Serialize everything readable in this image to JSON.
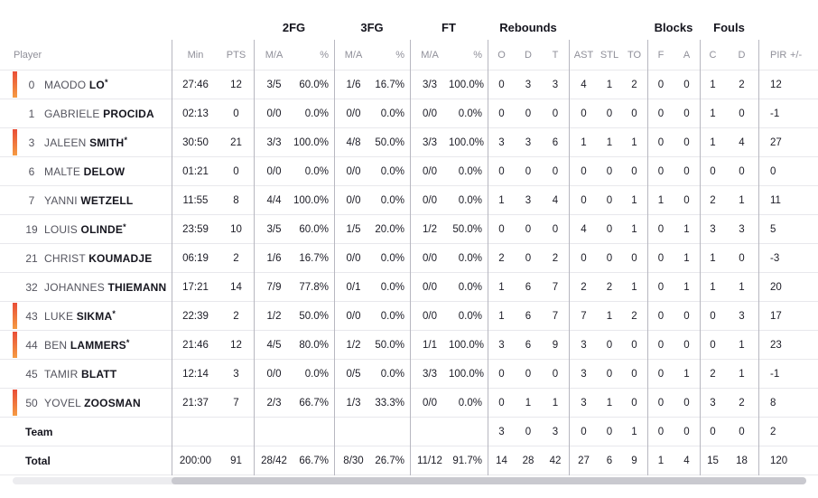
{
  "table": {
    "starter_mark": "*",
    "accent_gradient_top": "#e94e37",
    "accent_gradient_bottom": "#f59b43",
    "group_headers": [
      {
        "label": "2FG"
      },
      {
        "label": "3FG"
      },
      {
        "label": "FT"
      },
      {
        "label": "Rebounds"
      },
      {
        "label": "Blocks"
      },
      {
        "label": "Fouls"
      }
    ],
    "columns": {
      "player": "Player",
      "min": "Min",
      "pts": "PTS",
      "fg2_ma": "M/A",
      "fg2_pct": "%",
      "fg3_ma": "M/A",
      "fg3_pct": "%",
      "ft_ma": "M/A",
      "ft_pct": "%",
      "reb_o": "O",
      "reb_d": "D",
      "reb_t": "T",
      "ast": "AST",
      "stl": "STL",
      "to": "TO",
      "blk_f": "F",
      "blk_a": "A",
      "foul_c": "C",
      "foul_d": "D",
      "pir": "PIR",
      "plus_minus": "+/-"
    },
    "players": [
      {
        "number": "0",
        "first": "MAODO",
        "last": "LO",
        "starter": true,
        "on_court": true,
        "min": "27:46",
        "pts": "12",
        "fg2_ma": "3/5",
        "fg2_pct": "60.0%",
        "fg3_ma": "1/6",
        "fg3_pct": "16.7%",
        "ft_ma": "3/3",
        "ft_pct": "100.0%",
        "reb_o": "0",
        "reb_d": "3",
        "reb_t": "3",
        "ast": "4",
        "stl": "1",
        "to": "2",
        "blk_f": "0",
        "blk_a": "0",
        "foul_c": "1",
        "foul_d": "2",
        "pir": "12",
        "plus_minus": ""
      },
      {
        "number": "1",
        "first": "GABRIELE",
        "last": "PROCIDA",
        "starter": false,
        "on_court": false,
        "min": "02:13",
        "pts": "0",
        "fg2_ma": "0/0",
        "fg2_pct": "0.0%",
        "fg3_ma": "0/0",
        "fg3_pct": "0.0%",
        "ft_ma": "0/0",
        "ft_pct": "0.0%",
        "reb_o": "0",
        "reb_d": "0",
        "reb_t": "0",
        "ast": "0",
        "stl": "0",
        "to": "0",
        "blk_f": "0",
        "blk_a": "0",
        "foul_c": "1",
        "foul_d": "0",
        "pir": "-1",
        "plus_minus": ""
      },
      {
        "number": "3",
        "first": "JALEEN",
        "last": "SMITH",
        "starter": true,
        "on_court": true,
        "min": "30:50",
        "pts": "21",
        "fg2_ma": "3/3",
        "fg2_pct": "100.0%",
        "fg3_ma": "4/8",
        "fg3_pct": "50.0%",
        "ft_ma": "3/3",
        "ft_pct": "100.0%",
        "reb_o": "3",
        "reb_d": "3",
        "reb_t": "6",
        "ast": "1",
        "stl": "1",
        "to": "1",
        "blk_f": "0",
        "blk_a": "0",
        "foul_c": "1",
        "foul_d": "4",
        "pir": "27",
        "plus_minus": ""
      },
      {
        "number": "6",
        "first": "MALTE",
        "last": "DELOW",
        "starter": false,
        "on_court": false,
        "min": "01:21",
        "pts": "0",
        "fg2_ma": "0/0",
        "fg2_pct": "0.0%",
        "fg3_ma": "0/0",
        "fg3_pct": "0.0%",
        "ft_ma": "0/0",
        "ft_pct": "0.0%",
        "reb_o": "0",
        "reb_d": "0",
        "reb_t": "0",
        "ast": "0",
        "stl": "0",
        "to": "0",
        "blk_f": "0",
        "blk_a": "0",
        "foul_c": "0",
        "foul_d": "0",
        "pir": "0",
        "plus_minus": ""
      },
      {
        "number": "7",
        "first": "YANNI",
        "last": "WETZELL",
        "starter": false,
        "on_court": false,
        "min": "11:55",
        "pts": "8",
        "fg2_ma": "4/4",
        "fg2_pct": "100.0%",
        "fg3_ma": "0/0",
        "fg3_pct": "0.0%",
        "ft_ma": "0/0",
        "ft_pct": "0.0%",
        "reb_o": "1",
        "reb_d": "3",
        "reb_t": "4",
        "ast": "0",
        "stl": "0",
        "to": "1",
        "blk_f": "1",
        "blk_a": "0",
        "foul_c": "2",
        "foul_d": "1",
        "pir": "11",
        "plus_minus": ""
      },
      {
        "number": "19",
        "first": "LOUIS",
        "last": "OLINDE",
        "starter": true,
        "on_court": false,
        "min": "23:59",
        "pts": "10",
        "fg2_ma": "3/5",
        "fg2_pct": "60.0%",
        "fg3_ma": "1/5",
        "fg3_pct": "20.0%",
        "ft_ma": "1/2",
        "ft_pct": "50.0%",
        "reb_o": "0",
        "reb_d": "0",
        "reb_t": "0",
        "ast": "4",
        "stl": "0",
        "to": "1",
        "blk_f": "0",
        "blk_a": "1",
        "foul_c": "3",
        "foul_d": "3",
        "pir": "5",
        "plus_minus": ""
      },
      {
        "number": "21",
        "first": "CHRIST",
        "last": "KOUMADJE",
        "starter": false,
        "on_court": false,
        "min": "06:19",
        "pts": "2",
        "fg2_ma": "1/6",
        "fg2_pct": "16.7%",
        "fg3_ma": "0/0",
        "fg3_pct": "0.0%",
        "ft_ma": "0/0",
        "ft_pct": "0.0%",
        "reb_o": "2",
        "reb_d": "0",
        "reb_t": "2",
        "ast": "0",
        "stl": "0",
        "to": "0",
        "blk_f": "0",
        "blk_a": "1",
        "foul_c": "1",
        "foul_d": "0",
        "pir": "-3",
        "plus_minus": ""
      },
      {
        "number": "32",
        "first": "JOHANNES",
        "last": "THIEMANN",
        "starter": false,
        "on_court": false,
        "min": "17:21",
        "pts": "14",
        "fg2_ma": "7/9",
        "fg2_pct": "77.8%",
        "fg3_ma": "0/1",
        "fg3_pct": "0.0%",
        "ft_ma": "0/0",
        "ft_pct": "0.0%",
        "reb_o": "1",
        "reb_d": "6",
        "reb_t": "7",
        "ast": "2",
        "stl": "2",
        "to": "1",
        "blk_f": "0",
        "blk_a": "1",
        "foul_c": "1",
        "foul_d": "1",
        "pir": "20",
        "plus_minus": ""
      },
      {
        "number": "43",
        "first": "LUKE",
        "last": "SIKMA",
        "starter": true,
        "on_court": true,
        "min": "22:39",
        "pts": "2",
        "fg2_ma": "1/2",
        "fg2_pct": "50.0%",
        "fg3_ma": "0/0",
        "fg3_pct": "0.0%",
        "ft_ma": "0/0",
        "ft_pct": "0.0%",
        "reb_o": "1",
        "reb_d": "6",
        "reb_t": "7",
        "ast": "7",
        "stl": "1",
        "to": "2",
        "blk_f": "0",
        "blk_a": "0",
        "foul_c": "0",
        "foul_d": "3",
        "pir": "17",
        "plus_minus": ""
      },
      {
        "number": "44",
        "first": "BEN",
        "last": "LAMMERS",
        "starter": true,
        "on_court": true,
        "min": "21:46",
        "pts": "12",
        "fg2_ma": "4/5",
        "fg2_pct": "80.0%",
        "fg3_ma": "1/2",
        "fg3_pct": "50.0%",
        "ft_ma": "1/1",
        "ft_pct": "100.0%",
        "reb_o": "3",
        "reb_d": "6",
        "reb_t": "9",
        "ast": "3",
        "stl": "0",
        "to": "0",
        "blk_f": "0",
        "blk_a": "0",
        "foul_c": "0",
        "foul_d": "1",
        "pir": "23",
        "plus_minus": ""
      },
      {
        "number": "45",
        "first": "TAMIR",
        "last": "BLATT",
        "starter": false,
        "on_court": false,
        "min": "12:14",
        "pts": "3",
        "fg2_ma": "0/0",
        "fg2_pct": "0.0%",
        "fg3_ma": "0/5",
        "fg3_pct": "0.0%",
        "ft_ma": "3/3",
        "ft_pct": "100.0%",
        "reb_o": "0",
        "reb_d": "0",
        "reb_t": "0",
        "ast": "3",
        "stl": "0",
        "to": "0",
        "blk_f": "0",
        "blk_a": "1",
        "foul_c": "2",
        "foul_d": "1",
        "pir": "-1",
        "plus_minus": ""
      },
      {
        "number": "50",
        "first": "YOVEL",
        "last": "ZOOSMAN",
        "starter": false,
        "on_court": true,
        "min": "21:37",
        "pts": "7",
        "fg2_ma": "2/3",
        "fg2_pct": "66.7%",
        "fg3_ma": "1/3",
        "fg3_pct": "33.3%",
        "ft_ma": "0/0",
        "ft_pct": "0.0%",
        "reb_o": "0",
        "reb_d": "1",
        "reb_t": "1",
        "ast": "3",
        "stl": "1",
        "to": "0",
        "blk_f": "0",
        "blk_a": "0",
        "foul_c": "3",
        "foul_d": "2",
        "pir": "8",
        "plus_minus": ""
      }
    ],
    "summary_rows": [
      {
        "label": "Team",
        "min": "",
        "pts": "",
        "fg2_ma": "",
        "fg2_pct": "",
        "fg3_ma": "",
        "fg3_pct": "",
        "ft_ma": "",
        "ft_pct": "",
        "reb_o": "3",
        "reb_d": "0",
        "reb_t": "3",
        "ast": "0",
        "stl": "0",
        "to": "1",
        "blk_f": "0",
        "blk_a": "0",
        "foul_c": "0",
        "foul_d": "0",
        "pir": "2",
        "plus_minus": ""
      },
      {
        "label": "Total",
        "min": "200:00",
        "pts": "91",
        "fg2_ma": "28/42",
        "fg2_pct": "66.7%",
        "fg3_ma": "8/30",
        "fg3_pct": "26.7%",
        "ft_ma": "11/12",
        "ft_pct": "91.7%",
        "reb_o": "14",
        "reb_d": "28",
        "reb_t": "42",
        "ast": "27",
        "stl": "6",
        "to": "9",
        "blk_f": "1",
        "blk_a": "4",
        "foul_c": "15",
        "foul_d": "18",
        "pir": "120",
        "plus_minus": ""
      }
    ]
  }
}
